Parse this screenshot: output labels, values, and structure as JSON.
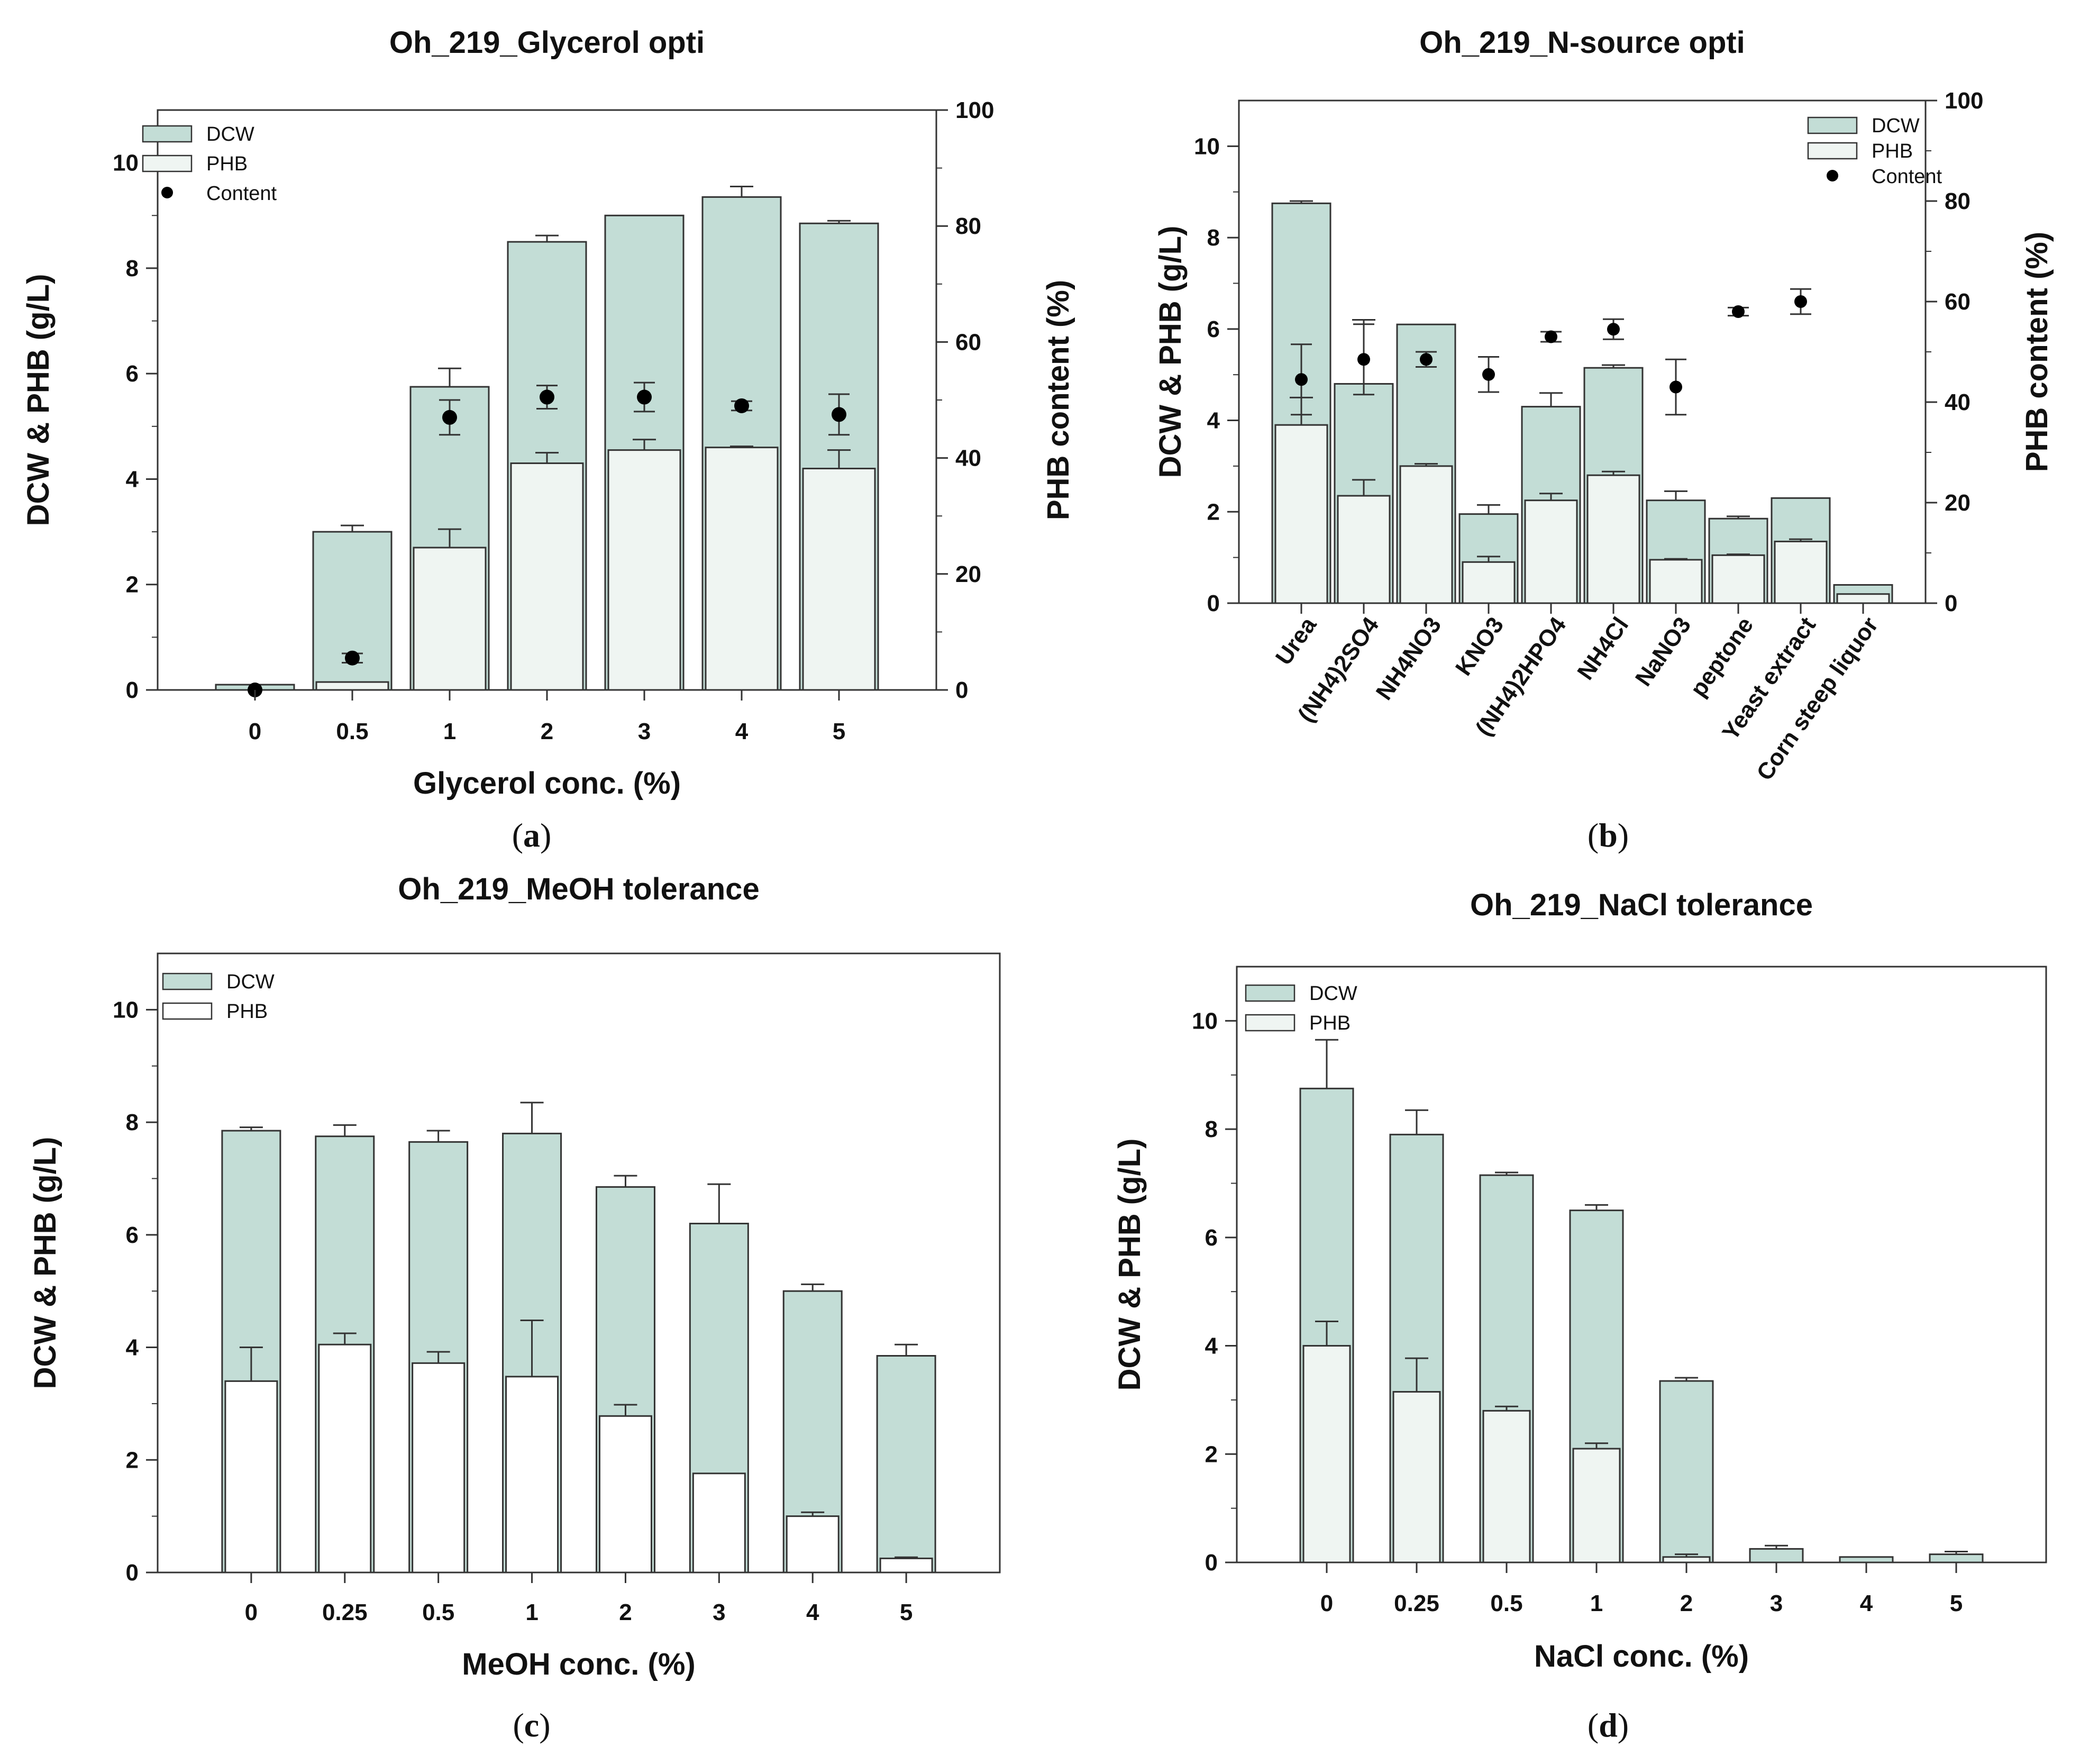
{
  "colors": {
    "dcw": "#c3ddd6",
    "phb": "#ffffff",
    "phb_light": "#eff5f2",
    "border": "#333333",
    "dot": "#000000"
  },
  "chart_data": [
    {
      "id": "a",
      "type": "bar",
      "panel_label": "a",
      "title": "Oh_219_Glycerol opti",
      "xlabel": "Glycerol conc. (%)",
      "ylabel": "DCW & PHB (g/L)",
      "y2label": "PHB content (%)",
      "ylim": [
        0,
        11
      ],
      "y2lim": [
        0,
        100
      ],
      "yticks": [
        "0",
        "2",
        "4",
        "6",
        "8",
        "10"
      ],
      "y2ticks": [
        "0",
        "20",
        "40",
        "60",
        "80",
        "100"
      ],
      "categories": [
        "0",
        "0.5",
        "1",
        "2",
        "3",
        "4",
        "5"
      ],
      "legend": [
        "DCW",
        "PHB",
        "Content"
      ],
      "series": [
        {
          "name": "DCW",
          "values": [
            0.1,
            3.0,
            5.75,
            8.5,
            9.0,
            9.35,
            8.85
          ],
          "errors": [
            0,
            0.12,
            0.35,
            0.12,
            0,
            0.2,
            0.05
          ]
        },
        {
          "name": "PHB",
          "values": [
            0.0,
            0.15,
            2.7,
            4.3,
            4.55,
            4.6,
            4.2
          ],
          "errors": [
            0,
            0,
            0.35,
            0.2,
            0.2,
            0.02,
            0.35
          ]
        },
        {
          "name": "Content",
          "values": [
            0,
            5.5,
            47,
            50.5,
            50.5,
            49,
            47.5
          ],
          "errors": [
            0,
            0.8,
            3,
            2,
            2.5,
            0.8,
            3.5
          ]
        }
      ]
    },
    {
      "id": "b",
      "type": "bar",
      "panel_label": "b",
      "title": "Oh_219_N-source opti",
      "xlabel": "",
      "ylabel": "DCW & PHB (g/L)",
      "y2label": "PHB content (%)",
      "ylim": [
        0,
        11
      ],
      "y2lim": [
        0,
        100
      ],
      "yticks": [
        "0",
        "2",
        "4",
        "6",
        "8",
        "10"
      ],
      "y2ticks": [
        "0",
        "20",
        "40",
        "60",
        "80",
        "100"
      ],
      "categories": [
        "Urea",
        "(NH4)2SO4",
        "NH4NO3",
        "KNO3",
        "(NH4)2HPO4",
        "NH4Cl",
        "NaNO3",
        "peptone",
        "Yeast extract",
        "Corn steep liquor"
      ],
      "legend": [
        "DCW",
        "PHB",
        "Content"
      ],
      "series": [
        {
          "name": "DCW",
          "values": [
            8.75,
            4.8,
            6.1,
            1.95,
            4.3,
            5.15,
            2.25,
            1.85,
            2.3,
            0.4
          ],
          "errors": [
            0.05,
            1.4,
            0,
            0.2,
            0.3,
            0.06,
            0.2,
            0.05,
            0,
            0
          ]
        },
        {
          "name": "PHB",
          "values": [
            3.9,
            2.35,
            3.0,
            0.9,
            2.25,
            2.8,
            0.95,
            1.05,
            1.35,
            0.2
          ],
          "errors": [
            0.6,
            0.35,
            0.05,
            0.12,
            0.15,
            0.08,
            0.02,
            0.02,
            0.05,
            0
          ]
        },
        {
          "name": "Content",
          "values": [
            44.5,
            48.5,
            48.5,
            45.5,
            53,
            54.5,
            43,
            58,
            60,
            null
          ],
          "errors": [
            7,
            7,
            1.5,
            3.5,
            1,
            2,
            5.5,
            0.8,
            2.5,
            0
          ]
        }
      ]
    },
    {
      "id": "c",
      "type": "bar",
      "panel_label": "c",
      "title": "Oh_219_MeOH tolerance",
      "xlabel": "MeOH conc. (%)",
      "ylabel": "DCW & PHB (g/L)",
      "ylim": [
        0,
        11
      ],
      "yticks": [
        "0",
        "2",
        "4",
        "6",
        "8",
        "10"
      ],
      "categories": [
        "0",
        "0.25",
        "0.5",
        "1",
        "2",
        "3",
        "4",
        "5"
      ],
      "legend": [
        "DCW",
        "PHB"
      ],
      "series": [
        {
          "name": "DCW",
          "values": [
            7.85,
            7.75,
            7.65,
            7.8,
            6.85,
            6.2,
            5.0,
            3.85
          ],
          "errors": [
            0.06,
            0.2,
            0.2,
            0.55,
            0.2,
            0.7,
            0.12,
            0.2
          ]
        },
        {
          "name": "PHB",
          "values": [
            3.4,
            4.05,
            3.72,
            3.48,
            2.78,
            1.76,
            1.0,
            0.25
          ],
          "errors": [
            0.6,
            0.2,
            0.2,
            1.0,
            0.2,
            0,
            0.07,
            0.02
          ]
        }
      ]
    },
    {
      "id": "d",
      "type": "bar",
      "panel_label": "d",
      "title": "Oh_219_NaCl tolerance",
      "xlabel": "NaCl conc. (%)",
      "ylabel": "DCW & PHB (g/L)",
      "ylim": [
        0,
        11
      ],
      "yticks": [
        "0",
        "2",
        "4",
        "6",
        "8",
        "10"
      ],
      "categories": [
        "0",
        "0.25",
        "0.5",
        "1",
        "2",
        "3",
        "4",
        "5"
      ],
      "legend": [
        "DCW",
        "PHB"
      ],
      "series": [
        {
          "name": "DCW",
          "values": [
            8.75,
            7.9,
            7.15,
            6.5,
            3.35,
            0.25,
            0.1,
            0.15
          ],
          "errors": [
            0.9,
            0.45,
            0.05,
            0.1,
            0.06,
            0.06,
            0,
            0.05
          ]
        },
        {
          "name": "PHB",
          "values": [
            4.0,
            3.15,
            2.8,
            2.1,
            0.1,
            0,
            0,
            0
          ],
          "errors": [
            0.45,
            0.62,
            0.08,
            0.1,
            0.05,
            0,
            0,
            0
          ]
        }
      ]
    }
  ]
}
